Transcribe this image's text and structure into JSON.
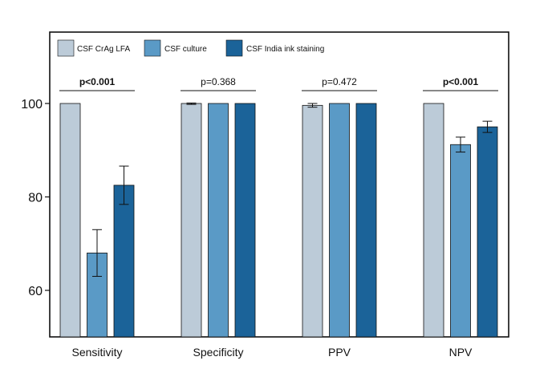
{
  "chart_data": {
    "type": "bar",
    "categories": [
      "Sensitivity",
      "Specificity",
      "PPV",
      "NPV"
    ],
    "series": [
      {
        "name": "CSF CrAg LFA",
        "color": "#bccbd8",
        "values": [
          100,
          100,
          99.6,
          100
        ],
        "errors": [
          null,
          [
            99.8,
            100.1
          ],
          [
            99.2,
            100.0
          ],
          null
        ]
      },
      {
        "name": "CSF culture",
        "color": "#5a9ac6",
        "values": [
          68,
          100,
          100,
          91.2
        ],
        "errors": [
          [
            63.0,
            73.0
          ],
          null,
          null,
          [
            89.6,
            92.8
          ]
        ]
      },
      {
        "name": "CSF India ink staining",
        "color": "#1b6399",
        "values": [
          82.5,
          100,
          100,
          95
        ],
        "errors": [
          [
            78.4,
            86.6
          ],
          null,
          null,
          [
            93.8,
            96.2
          ]
        ]
      }
    ],
    "annotations": [
      {
        "text": "p<0.001",
        "bold": true
      },
      {
        "text": "p=0.368",
        "bold": false
      },
      {
        "text": "p=0.472",
        "bold": false
      },
      {
        "text": "p<0.001",
        "bold": true
      }
    ],
    "yticks": [
      "100",
      "80",
      "60"
    ],
    "ytick_values": [
      100,
      80,
      60
    ],
    "ylim": [
      50,
      115
    ],
    "title": "",
    "xlabel": "",
    "ylabel": "",
    "legend_position": "top-left",
    "grid": false
  }
}
